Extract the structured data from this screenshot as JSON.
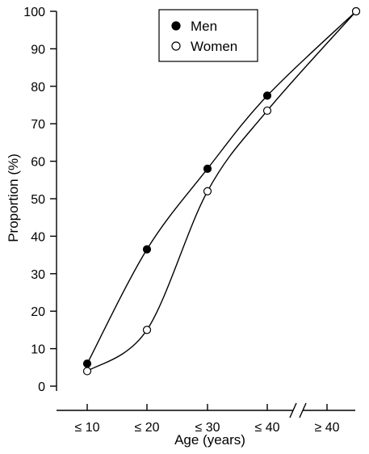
{
  "chart_data": {
    "type": "line",
    "xlabel": "Age (years)",
    "ylabel": "Proportion (%)",
    "categories": [
      "≤ 10",
      "≤ 20",
      "≤ 30",
      "≤ 40",
      "≥ 40"
    ],
    "ylim": [
      0,
      100
    ],
    "yticks": [
      0,
      10,
      20,
      30,
      40,
      50,
      60,
      70,
      80,
      90,
      100
    ],
    "axis_break": "between ≤ 40 and ≥ 40",
    "grid": false,
    "legend_position": "top-center",
    "series": [
      {
        "name": "Men",
        "marker": "filled-circle",
        "color": "#000000",
        "points": [
          {
            "x": "≤ 10",
            "y": 6
          },
          {
            "x": "≤ 20",
            "y": 36.5
          },
          {
            "x": "≤ 30",
            "y": 58
          },
          {
            "x": "≤ 40",
            "y": 77.5
          },
          {
            "x": "≥ 40",
            "y": 100
          }
        ]
      },
      {
        "name": "Women",
        "marker": "open-circle",
        "color": "#000000",
        "points": [
          {
            "x": "≤ 10",
            "y": 4
          },
          {
            "x": "≤ 20",
            "y": 15
          },
          {
            "x": "≤ 30",
            "y": 52
          },
          {
            "x": "≤ 40",
            "y": 73.5
          },
          {
            "x": "≥ 40",
            "y": 100
          }
        ]
      }
    ]
  }
}
